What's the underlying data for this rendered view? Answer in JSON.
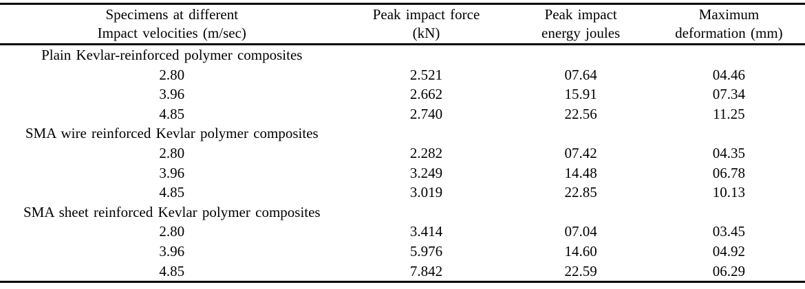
{
  "table": {
    "headers": {
      "specimens": {
        "line1": "Specimens at different",
        "line2": "Impact velocities (m/sec)"
      },
      "force": {
        "line1": "Peak impact force",
        "line2": "(kN)"
      },
      "energy": {
        "line1": "Peak impact",
        "line2": "energy joules"
      },
      "deformation": {
        "line1": "Maximum",
        "line2": "deformation (mm)"
      }
    },
    "sections": [
      {
        "label": "Plain Kevlar-reinforced polymer composites",
        "rows": [
          {
            "velocity": "2.80",
            "force": "2.521",
            "energy": "07.64",
            "deformation": "04.46"
          },
          {
            "velocity": "3.96",
            "force": "2.662",
            "energy": "15.91",
            "deformation": "07.34"
          },
          {
            "velocity": "4.85",
            "force": "2.740",
            "energy": "22.56",
            "deformation": "11.25"
          }
        ]
      },
      {
        "label": "SMA wire reinforced Kevlar polymer composites",
        "rows": [
          {
            "velocity": "2.80",
            "force": "2.282",
            "energy": "07.42",
            "deformation": "04.35"
          },
          {
            "velocity": "3.96",
            "force": "3.249",
            "energy": "14.48",
            "deformation": "06.78"
          },
          {
            "velocity": "4.85",
            "force": "3.019",
            "energy": "22.85",
            "deformation": "10.13"
          }
        ]
      },
      {
        "label": "SMA sheet reinforced Kevlar polymer composites",
        "rows": [
          {
            "velocity": "2.80",
            "force": "3.414",
            "energy": "07.04",
            "deformation": "03.45"
          },
          {
            "velocity": "3.96",
            "force": "5.976",
            "energy": "14.60",
            "deformation": "04.92"
          },
          {
            "velocity": "4.85",
            "force": "7.842",
            "energy": "22.59",
            "deformation": "06.29"
          }
        ]
      }
    ],
    "line_color": "#000000"
  }
}
